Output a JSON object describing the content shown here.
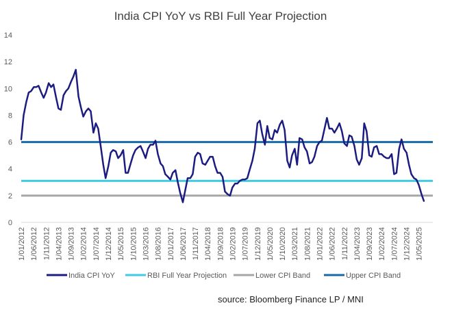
{
  "chart_data": {
    "type": "line",
    "title": "India CPI YoY vs RBI Full Year Projection",
    "source": "source: Bloomberg Finance LP / MNI",
    "xlabel": "",
    "ylabel": "",
    "ylim": [
      0,
      14
    ],
    "yticks": [
      0,
      2,
      4,
      6,
      8,
      10,
      12,
      14
    ],
    "xlim": [
      2012.0,
      2025.8
    ],
    "grid": false,
    "legend_position": "bottom",
    "colors": {
      "cpi": "#1c1c80",
      "projection": "#3fcbe4",
      "lower": "#a6a6a6",
      "upper": "#1869a6"
    },
    "xticks": [
      {
        "label": "1/01/2012",
        "x": 2012.0
      },
      {
        "label": "1/06/2012",
        "x": 2012.4167
      },
      {
        "label": "1/11/2012",
        "x": 2012.8333
      },
      {
        "label": "1/04/2013",
        "x": 2013.25
      },
      {
        "label": "1/09/2013",
        "x": 2013.6667
      },
      {
        "label": "1/02/2014",
        "x": 2014.0833
      },
      {
        "label": "1/07/2014",
        "x": 2014.5
      },
      {
        "label": "1/12/2014",
        "x": 2014.9167
      },
      {
        "label": "1/05/2015",
        "x": 2015.3333
      },
      {
        "label": "1/10/2015",
        "x": 2015.75
      },
      {
        "label": "1/03/2016",
        "x": 2016.1667
      },
      {
        "label": "1/08/2016",
        "x": 2016.5833
      },
      {
        "label": "1/01/2017",
        "x": 2017.0
      },
      {
        "label": "1/06/2017",
        "x": 2017.4167
      },
      {
        "label": "1/11/2017",
        "x": 2017.8333
      },
      {
        "label": "1/04/2018",
        "x": 2018.25
      },
      {
        "label": "1/09/2018",
        "x": 2018.6667
      },
      {
        "label": "1/02/2019",
        "x": 2019.0833
      },
      {
        "label": "1/07/2019",
        "x": 2019.5
      },
      {
        "label": "1/12/2019",
        "x": 2019.9167
      },
      {
        "label": "1/05/2020",
        "x": 2020.3333
      },
      {
        "label": "1/10/2020",
        "x": 2020.75
      },
      {
        "label": "1/03/2021",
        "x": 2021.1667
      },
      {
        "label": "1/08/2021",
        "x": 2021.5833
      },
      {
        "label": "1/01/2022",
        "x": 2022.0
      },
      {
        "label": "1/06/2022",
        "x": 2022.4167
      },
      {
        "label": "1/11/2022",
        "x": 2022.8333
      },
      {
        "label": "1/04/2023",
        "x": 2023.25
      },
      {
        "label": "1/09/2023",
        "x": 2023.6667
      },
      {
        "label": "1/02/2024",
        "x": 2024.0833
      },
      {
        "label": "1/07/2024",
        "x": 2024.5
      },
      {
        "label": "1/12/2024",
        "x": 2024.9167
      },
      {
        "label": "1/05/2025",
        "x": 2025.3333
      }
    ],
    "series": [
      {
        "name": "India CPI YoY",
        "key": "cpi",
        "points": [
          [
            2012.0,
            6.2
          ],
          [
            2012.08,
            8.0
          ],
          [
            2012.17,
            9.0
          ],
          [
            2012.25,
            9.7
          ],
          [
            2012.33,
            9.8
          ],
          [
            2012.42,
            10.1
          ],
          [
            2012.5,
            10.1
          ],
          [
            2012.58,
            10.2
          ],
          [
            2012.67,
            9.7
          ],
          [
            2012.75,
            9.3
          ],
          [
            2012.83,
            9.7
          ],
          [
            2012.92,
            10.4
          ],
          [
            2013.0,
            10.1
          ],
          [
            2013.08,
            10.3
          ],
          [
            2013.17,
            9.3
          ],
          [
            2013.25,
            8.5
          ],
          [
            2013.33,
            8.4
          ],
          [
            2013.42,
            9.5
          ],
          [
            2013.5,
            9.8
          ],
          [
            2013.58,
            10.0
          ],
          [
            2013.67,
            10.5
          ],
          [
            2013.75,
            10.9
          ],
          [
            2013.83,
            11.4
          ],
          [
            2013.92,
            9.4
          ],
          [
            2014.0,
            8.6
          ],
          [
            2014.08,
            7.9
          ],
          [
            2014.17,
            8.3
          ],
          [
            2014.25,
            8.5
          ],
          [
            2014.33,
            8.3
          ],
          [
            2014.42,
            6.7
          ],
          [
            2014.5,
            7.4
          ],
          [
            2014.58,
            7.0
          ],
          [
            2014.67,
            5.6
          ],
          [
            2014.75,
            4.3
          ],
          [
            2014.83,
            3.3
          ],
          [
            2014.92,
            4.2
          ],
          [
            2015.0,
            5.2
          ],
          [
            2015.08,
            5.4
          ],
          [
            2015.17,
            5.3
          ],
          [
            2015.25,
            4.8
          ],
          [
            2015.33,
            5.0
          ],
          [
            2015.42,
            5.4
          ],
          [
            2015.5,
            3.7
          ],
          [
            2015.58,
            3.7
          ],
          [
            2015.67,
            4.4
          ],
          [
            2015.75,
            5.0
          ],
          [
            2015.83,
            5.4
          ],
          [
            2015.92,
            5.6
          ],
          [
            2016.0,
            5.7
          ],
          [
            2016.08,
            5.3
          ],
          [
            2016.17,
            4.8
          ],
          [
            2016.25,
            5.5
          ],
          [
            2016.33,
            5.8
          ],
          [
            2016.42,
            5.8
          ],
          [
            2016.5,
            6.1
          ],
          [
            2016.58,
            5.1
          ],
          [
            2016.67,
            4.4
          ],
          [
            2016.75,
            4.2
          ],
          [
            2016.83,
            3.6
          ],
          [
            2016.92,
            3.4
          ],
          [
            2017.0,
            3.2
          ],
          [
            2017.08,
            3.7
          ],
          [
            2017.17,
            3.9
          ],
          [
            2017.25,
            3.0
          ],
          [
            2017.33,
            2.2
          ],
          [
            2017.42,
            1.5
          ],
          [
            2017.5,
            2.4
          ],
          [
            2017.58,
            3.3
          ],
          [
            2017.67,
            3.3
          ],
          [
            2017.75,
            3.6
          ],
          [
            2017.83,
            4.9
          ],
          [
            2017.92,
            5.2
          ],
          [
            2018.0,
            5.1
          ],
          [
            2018.08,
            4.4
          ],
          [
            2018.17,
            4.3
          ],
          [
            2018.25,
            4.6
          ],
          [
            2018.33,
            4.9
          ],
          [
            2018.42,
            4.9
          ],
          [
            2018.5,
            4.2
          ],
          [
            2018.58,
            3.7
          ],
          [
            2018.67,
            3.7
          ],
          [
            2018.75,
            3.4
          ],
          [
            2018.83,
            2.3
          ],
          [
            2018.92,
            2.1
          ],
          [
            2019.0,
            2.0
          ],
          [
            2019.08,
            2.6
          ],
          [
            2019.17,
            2.9
          ],
          [
            2019.25,
            2.9
          ],
          [
            2019.33,
            3.1
          ],
          [
            2019.42,
            3.2
          ],
          [
            2019.5,
            3.2
          ],
          [
            2019.58,
            3.3
          ],
          [
            2019.67,
            4.0
          ],
          [
            2019.75,
            4.6
          ],
          [
            2019.83,
            5.5
          ],
          [
            2019.92,
            7.4
          ],
          [
            2020.0,
            7.6
          ],
          [
            2020.08,
            6.6
          ],
          [
            2020.17,
            5.8
          ],
          [
            2020.25,
            7.2
          ],
          [
            2020.33,
            6.3
          ],
          [
            2020.42,
            6.2
          ],
          [
            2020.5,
            6.9
          ],
          [
            2020.58,
            6.7
          ],
          [
            2020.67,
            7.3
          ],
          [
            2020.75,
            7.6
          ],
          [
            2020.83,
            6.9
          ],
          [
            2020.92,
            4.6
          ],
          [
            2021.0,
            4.1
          ],
          [
            2021.08,
            5.0
          ],
          [
            2021.17,
            5.5
          ],
          [
            2021.25,
            4.3
          ],
          [
            2021.33,
            6.3
          ],
          [
            2021.42,
            6.2
          ],
          [
            2021.5,
            5.6
          ],
          [
            2021.58,
            5.3
          ],
          [
            2021.67,
            4.4
          ],
          [
            2021.75,
            4.5
          ],
          [
            2021.83,
            4.9
          ],
          [
            2021.92,
            5.7
          ],
          [
            2022.0,
            6.0
          ],
          [
            2022.08,
            6.1
          ],
          [
            2022.17,
            7.0
          ],
          [
            2022.25,
            7.8
          ],
          [
            2022.33,
            7.0
          ],
          [
            2022.42,
            7.0
          ],
          [
            2022.5,
            6.7
          ],
          [
            2022.58,
            7.0
          ],
          [
            2022.67,
            7.4
          ],
          [
            2022.75,
            6.8
          ],
          [
            2022.83,
            5.9
          ],
          [
            2022.92,
            5.7
          ],
          [
            2023.0,
            6.5
          ],
          [
            2023.08,
            6.4
          ],
          [
            2023.17,
            5.7
          ],
          [
            2023.25,
            4.7
          ],
          [
            2023.33,
            4.3
          ],
          [
            2023.42,
            4.8
          ],
          [
            2023.5,
            7.4
          ],
          [
            2023.58,
            6.8
          ],
          [
            2023.67,
            5.0
          ],
          [
            2023.75,
            4.9
          ],
          [
            2023.83,
            5.6
          ],
          [
            2023.92,
            5.7
          ],
          [
            2024.0,
            5.1
          ],
          [
            2024.08,
            5.1
          ],
          [
            2024.17,
            4.9
          ],
          [
            2024.25,
            4.8
          ],
          [
            2024.33,
            4.8
          ],
          [
            2024.42,
            5.1
          ],
          [
            2024.5,
            3.6
          ],
          [
            2024.58,
            3.7
          ],
          [
            2024.67,
            5.5
          ],
          [
            2024.75,
            6.2
          ],
          [
            2024.83,
            5.5
          ],
          [
            2024.92,
            5.2
          ],
          [
            2025.0,
            4.3
          ],
          [
            2025.08,
            3.6
          ],
          [
            2025.17,
            3.3
          ],
          [
            2025.25,
            3.2
          ],
          [
            2025.33,
            2.8
          ],
          [
            2025.42,
            2.1
          ],
          [
            2025.5,
            1.6
          ]
        ]
      },
      {
        "name": "RBI Full Year Projection",
        "key": "projection",
        "constant": 3.1
      },
      {
        "name": "Lower CPI Band",
        "key": "lower",
        "constant": 2.0
      },
      {
        "name": "Upper CPI Band",
        "key": "upper",
        "constant": 6.0
      }
    ]
  }
}
